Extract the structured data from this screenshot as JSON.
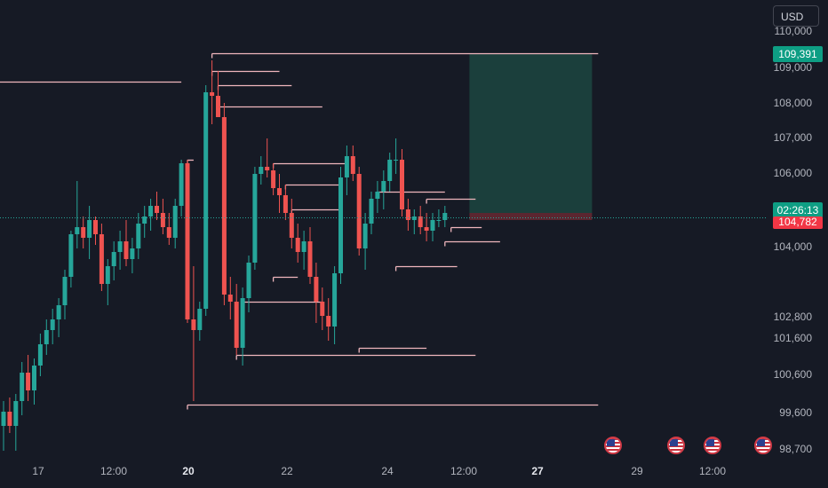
{
  "currency_button": "USD",
  "price_axis": {
    "ticks": [
      "110,000",
      "109,000",
      "108,000",
      "107,000",
      "106,000",
      "104,000",
      "102,800",
      "101,600",
      "100,600",
      "99,600",
      "98,700"
    ],
    "current_price_label": "109,391",
    "countdown_label": "02:26:13",
    "last_price_label": "104,782"
  },
  "time_axis": {
    "labels": [
      {
        "text": "17",
        "bold": false
      },
      {
        "text": "12:00",
        "bold": false
      },
      {
        "text": "20",
        "bold": true
      },
      {
        "text": "22",
        "bold": false
      },
      {
        "text": "24",
        "bold": false
      },
      {
        "text": "12:00",
        "bold": false
      },
      {
        "text": "27",
        "bold": true
      },
      {
        "text": "29",
        "bold": false
      },
      {
        "text": "12:00",
        "bold": false
      }
    ]
  },
  "events": [
    {
      "icon": "us-flag-icon"
    },
    {
      "icon": "us-flag-icon"
    },
    {
      "icon": "us-flag-icon"
    },
    {
      "icon": "us-flag-icon"
    }
  ],
  "colors": {
    "background": "#161a25",
    "up": "#26a69a",
    "down": "#ef5350",
    "level_line": "#f0b6bd",
    "target_zone": "#1b3f3c",
    "stop_zone": "#5b2630",
    "current_tag": "#0e9e84",
    "last_tag": "#f23645"
  },
  "chart_data": {
    "type": "candlestick",
    "title": "",
    "xlabel": "",
    "ylabel": "",
    "ylim": [
      98400,
      110400
    ],
    "candles": [
      {
        "o": 98900,
        "h": 99600,
        "l": 98200,
        "c": 99300
      },
      {
        "o": 99300,
        "h": 99700,
        "l": 98700,
        "c": 98900
      },
      {
        "o": 98900,
        "h": 99800,
        "l": 98200,
        "c": 99600
      },
      {
        "o": 99600,
        "h": 100700,
        "l": 99200,
        "c": 100400
      },
      {
        "o": 100400,
        "h": 100900,
        "l": 99600,
        "c": 99900
      },
      {
        "o": 99900,
        "h": 100800,
        "l": 99500,
        "c": 100600
      },
      {
        "o": 100600,
        "h": 101500,
        "l": 100300,
        "c": 101200
      },
      {
        "o": 101200,
        "h": 101900,
        "l": 100900,
        "c": 101600
      },
      {
        "o": 101600,
        "h": 102200,
        "l": 101200,
        "c": 101900
      },
      {
        "o": 101900,
        "h": 102500,
        "l": 101400,
        "c": 102300
      },
      {
        "o": 102300,
        "h": 103300,
        "l": 101900,
        "c": 103100
      },
      {
        "o": 103100,
        "h": 104400,
        "l": 102800,
        "c": 104300
      },
      {
        "o": 104300,
        "h": 105800,
        "l": 103900,
        "c": 104500
      },
      {
        "o": 104500,
        "h": 104800,
        "l": 103900,
        "c": 104200
      },
      {
        "o": 104200,
        "h": 105100,
        "l": 103600,
        "c": 104700
      },
      {
        "o": 104700,
        "h": 104800,
        "l": 104000,
        "c": 104300
      },
      {
        "o": 104300,
        "h": 104600,
        "l": 102700,
        "c": 102900
      },
      {
        "o": 102900,
        "h": 103600,
        "l": 102300,
        "c": 103400
      },
      {
        "o": 103400,
        "h": 104100,
        "l": 103000,
        "c": 103800
      },
      {
        "o": 103800,
        "h": 104400,
        "l": 103300,
        "c": 104100
      },
      {
        "o": 104100,
        "h": 104700,
        "l": 103400,
        "c": 103600
      },
      {
        "o": 103600,
        "h": 104200,
        "l": 103200,
        "c": 103900
      },
      {
        "o": 103900,
        "h": 104900,
        "l": 103600,
        "c": 104600
      },
      {
        "o": 104600,
        "h": 105100,
        "l": 104200,
        "c": 104800
      },
      {
        "o": 104800,
        "h": 105300,
        "l": 104400,
        "c": 105100
      },
      {
        "o": 105100,
        "h": 105500,
        "l": 104700,
        "c": 104900
      },
      {
        "o": 104900,
        "h": 105300,
        "l": 104300,
        "c": 104500
      },
      {
        "o": 104500,
        "h": 104900,
        "l": 104000,
        "c": 104200
      },
      {
        "o": 104200,
        "h": 105300,
        "l": 103900,
        "c": 105100
      },
      {
        "o": 105100,
        "h": 106400,
        "l": 104800,
        "c": 106300
      },
      {
        "o": 106300,
        "h": 106400,
        "l": 101800,
        "c": 101900
      },
      {
        "o": 101900,
        "h": 103400,
        "l": 99600,
        "c": 101600
      },
      {
        "o": 101600,
        "h": 102400,
        "l": 101300,
        "c": 102200
      },
      {
        "o": 102200,
        "h": 108500,
        "l": 102000,
        "c": 108300
      },
      {
        "o": 108300,
        "h": 109200,
        "l": 107400,
        "c": 108200
      },
      {
        "o": 108200,
        "h": 108900,
        "l": 107700,
        "c": 107600
      },
      {
        "o": 107600,
        "h": 108000,
        "l": 102300,
        "c": 102600
      },
      {
        "o": 102600,
        "h": 103100,
        "l": 101900,
        "c": 102400
      },
      {
        "o": 102400,
        "h": 102900,
        "l": 100900,
        "c": 101100
      },
      {
        "o": 101100,
        "h": 102800,
        "l": 100600,
        "c": 102500
      },
      {
        "o": 102500,
        "h": 103700,
        "l": 102100,
        "c": 103500
      },
      {
        "o": 103500,
        "h": 106200,
        "l": 103300,
        "c": 106000
      },
      {
        "o": 106000,
        "h": 106500,
        "l": 105700,
        "c": 106200
      },
      {
        "o": 106200,
        "h": 107000,
        "l": 105900,
        "c": 106100
      },
      {
        "o": 106100,
        "h": 106300,
        "l": 105400,
        "c": 105600
      },
      {
        "o": 105600,
        "h": 106000,
        "l": 104900,
        "c": 105400
      },
      {
        "o": 105400,
        "h": 105700,
        "l": 104700,
        "c": 104900
      },
      {
        "o": 104900,
        "h": 105300,
        "l": 103900,
        "c": 104200
      },
      {
        "o": 104200,
        "h": 104600,
        "l": 103500,
        "c": 103800
      },
      {
        "o": 103800,
        "h": 104400,
        "l": 103300,
        "c": 104100
      },
      {
        "o": 104100,
        "h": 104500,
        "l": 102900,
        "c": 103100
      },
      {
        "o": 103100,
        "h": 103500,
        "l": 101800,
        "c": 102400
      },
      {
        "o": 102400,
        "h": 102800,
        "l": 101600,
        "c": 102000
      },
      {
        "o": 102000,
        "h": 102500,
        "l": 101300,
        "c": 101700
      },
      {
        "o": 101700,
        "h": 103400,
        "l": 101200,
        "c": 103200
      },
      {
        "o": 103200,
        "h": 106200,
        "l": 102900,
        "c": 105900
      },
      {
        "o": 105900,
        "h": 106800,
        "l": 105400,
        "c": 106500
      },
      {
        "o": 106500,
        "h": 106800,
        "l": 105800,
        "c": 106000
      },
      {
        "o": 106000,
        "h": 106200,
        "l": 103700,
        "c": 103900
      },
      {
        "o": 103900,
        "h": 104900,
        "l": 103300,
        "c": 104600
      },
      {
        "o": 104600,
        "h": 105500,
        "l": 104300,
        "c": 105300
      },
      {
        "o": 105300,
        "h": 105800,
        "l": 104900,
        "c": 105500
      },
      {
        "o": 105500,
        "h": 106100,
        "l": 105000,
        "c": 105800
      },
      {
        "o": 105800,
        "h": 106600,
        "l": 105500,
        "c": 106400
      },
      {
        "o": 106400,
        "h": 107000,
        "l": 106000,
        "c": 106400
      },
      {
        "o": 106400,
        "h": 106700,
        "l": 104800,
        "c": 105000
      },
      {
        "o": 105000,
        "h": 105300,
        "l": 104400,
        "c": 104700
      },
      {
        "o": 104700,
        "h": 105000,
        "l": 104300,
        "c": 104800
      },
      {
        "o": 104800,
        "h": 105100,
        "l": 104300,
        "c": 104500
      },
      {
        "o": 104500,
        "h": 104900,
        "l": 104100,
        "c": 104400
      },
      {
        "o": 104400,
        "h": 104900,
        "l": 104100,
        "c": 104700
      },
      {
        "o": 104700,
        "h": 105000,
        "l": 104500,
        "c": 104700
      },
      {
        "o": 104700,
        "h": 105100,
        "l": 104500,
        "c": 104900
      }
    ],
    "levels": [
      {
        "price": 109400,
        "from": 34,
        "to": 97
      },
      {
        "price": 108900,
        "from": 34,
        "to": 45
      },
      {
        "price": 108500,
        "from": 35,
        "to": 47
      },
      {
        "price": 107900,
        "from": 35,
        "to": 52
      },
      {
        "price": 106400,
        "from": 30,
        "to": 31
      },
      {
        "price": 106300,
        "from": 44,
        "to": 56
      },
      {
        "price": 105700,
        "from": 46,
        "to": 55
      },
      {
        "price": 105000,
        "from": 47,
        "to": 55
      },
      {
        "price": 105500,
        "from": 61,
        "to": 72
      },
      {
        "price": 105300,
        "from": 69,
        "to": 77
      },
      {
        "price": 104500,
        "from": 73,
        "to": 78
      },
      {
        "price": 104100,
        "from": 72,
        "to": 81
      },
      {
        "price": 103100,
        "from": 44,
        "to": 48
      },
      {
        "price": 102400,
        "from": 39,
        "to": 52
      },
      {
        "price": 103400,
        "from": 64,
        "to": 74
      },
      {
        "price": 101100,
        "from": 58,
        "to": 69
      },
      {
        "price": 100900,
        "from": 38,
        "to": 77
      },
      {
        "price": 99500,
        "from": 30,
        "to": 97
      }
    ],
    "prior_level": {
      "price": 108600,
      "x_end_candle": 29
    },
    "target_zone": {
      "from_candle": 76,
      "to_candle": 96,
      "top": 109400,
      "bottom": 104900
    },
    "stop_zone": {
      "from_candle": 76,
      "to_candle": 96,
      "top": 104900,
      "bottom": 104700
    },
    "current_price": 104782
  }
}
